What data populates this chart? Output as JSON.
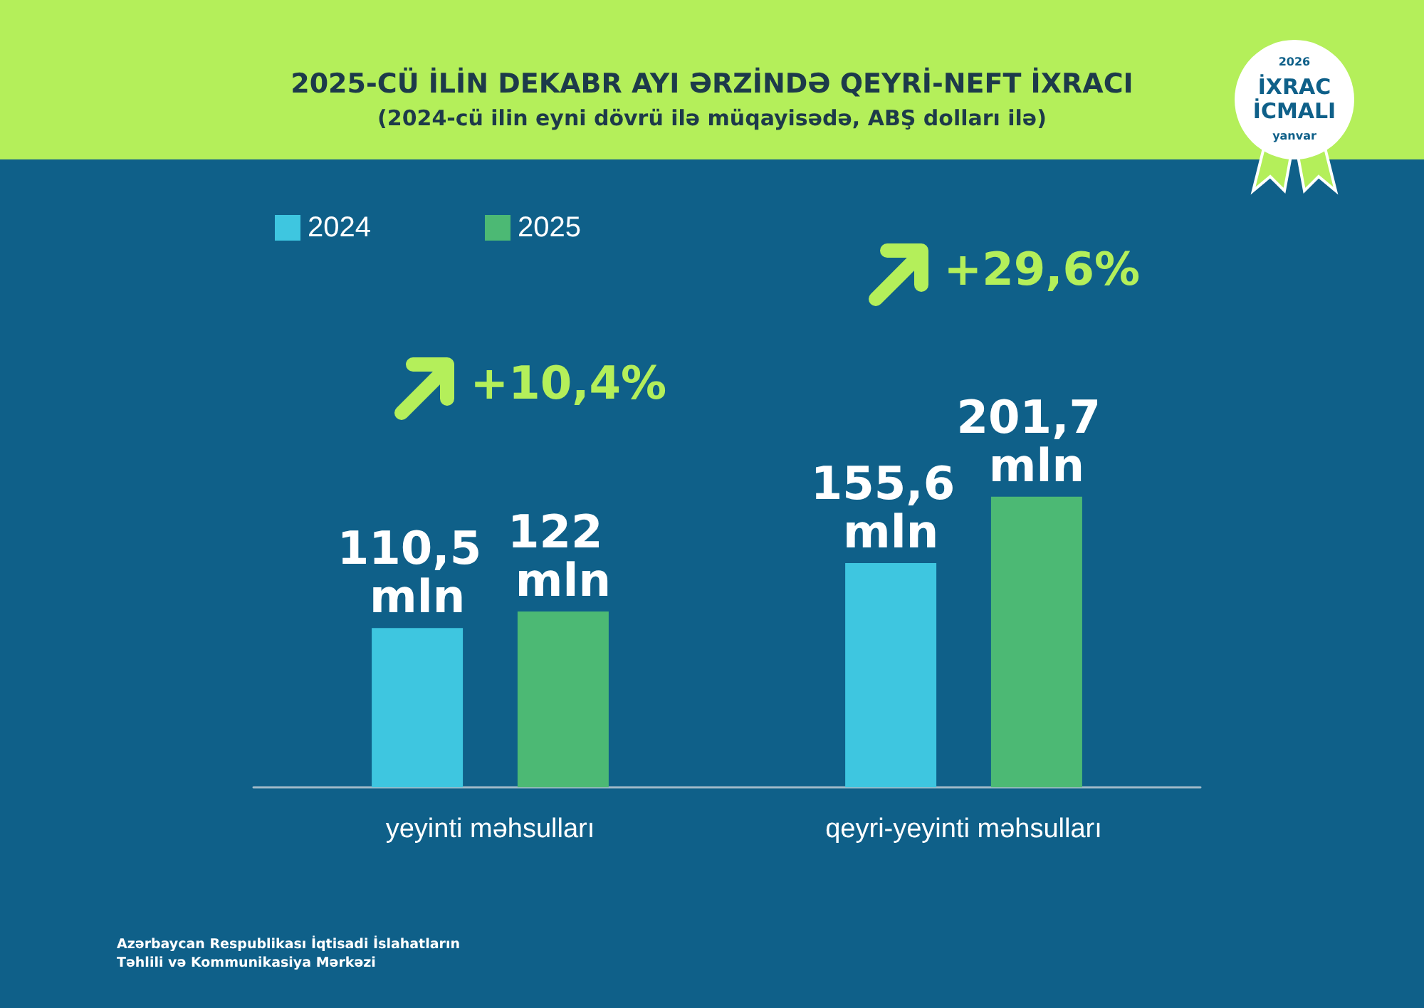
{
  "chart_data": {
    "type": "bar",
    "title": "2025-CÜ İLİN DEKABR AYI ƏRZİNDƏ QEYRİ-NEFT İXRACI",
    "subtitle": "(2024-cü ilin eyni dövrü ilə müqayisədə, ABŞ dolları ilə)",
    "categories": [
      "yeyinti məhsulları",
      "qeyri-yeyinti məhsulları"
    ],
    "series": [
      {
        "name": "2024",
        "color": "#3ec6e0",
        "values": [
          110.5,
          155.6
        ],
        "value_labels": [
          "110,5 mln",
          "155,6 mln"
        ]
      },
      {
        "name": "2025",
        "color": "#4cb974",
        "values": [
          122,
          201.7
        ],
        "value_labels": [
          "122 mln",
          "201,7 mln"
        ]
      }
    ],
    "legend": "top left",
    "annotations": [
      "+10,4%",
      "+29,6%",
      "2026",
      "İXRAC İCMALI",
      "yanvar",
      "Azərbaycan Respublikası İqtisadi İslahatların Təhlili və Kommunikasiya Mərkəzi"
    ]
  }
}
